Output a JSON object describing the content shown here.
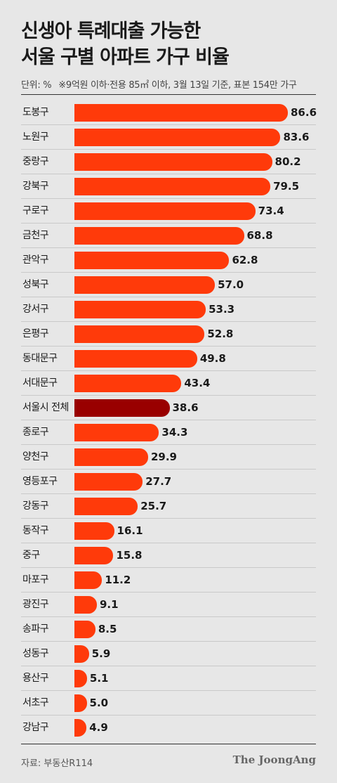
{
  "title_line1": "신생아 특례대출 가능한",
  "title_line2": "서울 구별 아파트 가구 비율",
  "unit": "단위: %",
  "note": "※9억원 이하·전용 85㎡ 이하, 3월 13일 기준, 표본 154만 가구",
  "source": "자료: 부동산R114",
  "logo": "The JoongAng",
  "colors": {
    "bar": "#ff3a0a",
    "highlight": "#990000",
    "background": "#e7e7e7"
  },
  "chart_data": {
    "type": "bar",
    "orientation": "horizontal",
    "categories": [
      "도봉구",
      "노원구",
      "중랑구",
      "강북구",
      "구로구",
      "금천구",
      "관악구",
      "성북구",
      "강서구",
      "은평구",
      "동대문구",
      "서대문구",
      "서울시 전체",
      "종로구",
      "양천구",
      "영등포구",
      "강동구",
      "동작구",
      "중구",
      "마포구",
      "광진구",
      "송파구",
      "성동구",
      "용산구",
      "서초구",
      "강남구"
    ],
    "values": [
      86.6,
      83.6,
      80.2,
      79.5,
      73.4,
      68.8,
      62.8,
      57.0,
      53.3,
      52.8,
      49.8,
      43.4,
      38.6,
      34.3,
      29.9,
      27.7,
      25.7,
      16.1,
      15.8,
      11.2,
      9.1,
      8.5,
      5.9,
      5.1,
      5.0,
      4.9
    ],
    "highlight": "서울시 전체",
    "xlim": [
      0,
      86.6
    ],
    "grid": false
  }
}
